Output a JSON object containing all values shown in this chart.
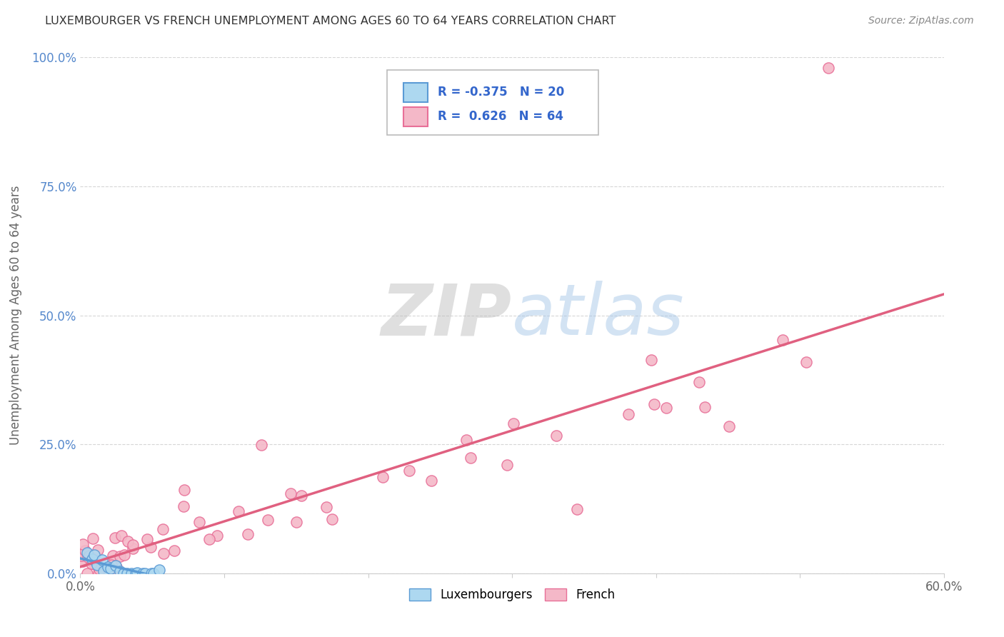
{
  "title": "LUXEMBOURGER VS FRENCH UNEMPLOYMENT AMONG AGES 60 TO 64 YEARS CORRELATION CHART",
  "source": "Source: ZipAtlas.com",
  "ylabel": "Unemployment Among Ages 60 to 64 years",
  "xlim": [
    0.0,
    0.6
  ],
  "ylim": [
    0.0,
    1.0
  ],
  "xticks": [
    0.0,
    0.1,
    0.2,
    0.3,
    0.4,
    0.5,
    0.6
  ],
  "xticklabels": [
    "0.0%",
    "",
    "",
    "",
    "",
    "",
    "60.0%"
  ],
  "yticks": [
    0.0,
    0.25,
    0.5,
    0.75,
    1.0
  ],
  "yticklabels": [
    "0.0%",
    "25.0%",
    "50.0%",
    "75.0%",
    "100.0%"
  ],
  "luxembourger_color": "#add8f0",
  "luxembourger_edge": "#5b9bd5",
  "french_color": "#f4b8c8",
  "french_edge": "#e87098",
  "french_line_color": "#e06080",
  "lux_line_color": "#5b9bd5",
  "luxembourger_R": -0.375,
  "luxembourger_N": 20,
  "french_R": 0.626,
  "french_N": 64,
  "background_color": "#ffffff",
  "grid_color": "#cccccc",
  "title_color": "#333333",
  "axis_color": "#666666",
  "watermark_color": "#c5d8ed",
  "r_n_color": "#3366cc",
  "ytick_color": "#5588cc"
}
